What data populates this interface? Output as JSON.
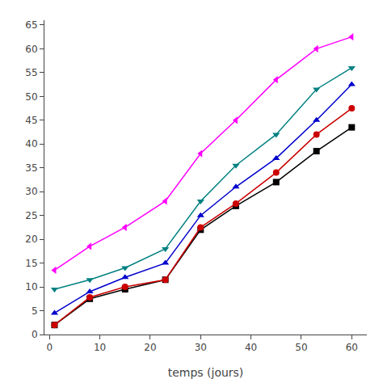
{
  "chart_data": {
    "type": "line",
    "xlabel": "temps (jours)",
    "x": [
      1,
      8,
      15,
      23,
      30,
      37,
      45,
      53,
      60
    ],
    "series": [
      {
        "color": "#000000",
        "marker": "square",
        "line_style": "solid",
        "values": [
          2.0,
          7.5,
          9.5,
          11.5,
          22.0,
          27.0,
          32.0,
          38.5,
          43.5
        ]
      },
      {
        "color": "#cc0000",
        "marker": "circle",
        "line_style": "solid",
        "values": [
          2.0,
          7.8,
          10.0,
          11.5,
          22.5,
          27.5,
          34.0,
          42.0,
          47.5
        ]
      },
      {
        "color": "#0000cc",
        "marker": "triangle-up",
        "line_style": "solid",
        "values": [
          4.5,
          9.0,
          12.0,
          15.0,
          25.0,
          31.0,
          37.0,
          45.0,
          52.5
        ]
      },
      {
        "color": "#008080",
        "marker": "triangle-down",
        "line_style": "solid",
        "values": [
          9.5,
          11.5,
          14.0,
          18.0,
          28.0,
          35.5,
          42.0,
          51.5,
          56.0
        ]
      },
      {
        "color": "#ff00ff",
        "marker": "triangle-left",
        "line_style": "solid",
        "values": [
          13.5,
          18.5,
          22.5,
          28.0,
          38.0,
          45.0,
          53.5,
          60.0,
          62.5
        ]
      }
    ],
    "xlim": [
      -1,
      63
    ],
    "xticks": [
      0,
      10,
      20,
      30,
      40,
      50,
      60
    ],
    "ylim": [
      0,
      66
    ],
    "yticks": [
      0,
      5,
      10,
      15,
      20,
      25,
      30,
      35,
      40,
      45,
      50,
      55,
      60,
      65
    ],
    "grid": false
  }
}
